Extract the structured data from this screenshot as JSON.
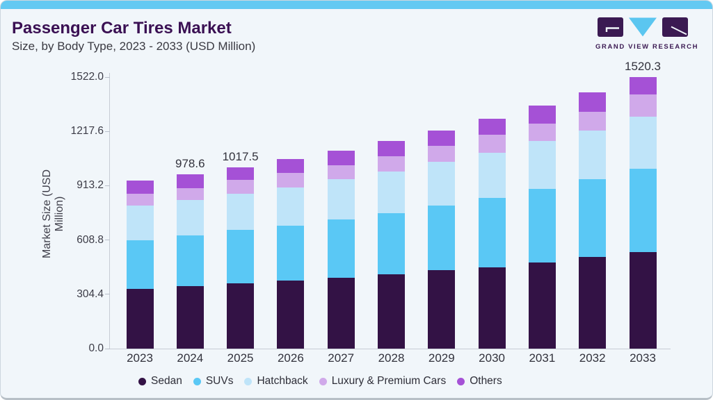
{
  "page": {
    "title": "Passenger Car Tires Market",
    "subtitle": "Size, by Body Type, 2023 - 2033 (USD Million)"
  },
  "logo": {
    "brand": "GRAND VIEW RESEARCH",
    "dark_color": "#3b1a52",
    "blue_color": "#5bc6f0"
  },
  "theme": {
    "card_background": "#f1f6fa",
    "accent_bar": "#63c9f2",
    "title_color": "#3a1053",
    "axis_line_color": "#c7ccd4",
    "text_color": "#32323c"
  },
  "chart_data": {
    "type": "bar",
    "stacked": true,
    "title": "Passenger Car Tires Market Size, by Body Type, 2023 - 2033 (USD Million)",
    "xlabel": "",
    "ylabel": "Market Size (USD Million)",
    "ylim": [
      0,
      1522.0
    ],
    "yticks": [
      0.0,
      304.4,
      608.8,
      913.2,
      1217.6,
      1522.0
    ],
    "grid": false,
    "legend_position": "bottom",
    "categories": [
      "2023",
      "2024",
      "2025",
      "2026",
      "2027",
      "2028",
      "2029",
      "2030",
      "2031",
      "2032",
      "2033"
    ],
    "series": [
      {
        "name": "Sedan",
        "color": "#331245",
        "values": [
          336.6,
          349.3,
          366.4,
          383.3,
          395.4,
          415.5,
          439.6,
          457.3,
          483.8,
          512.0,
          540.2
        ]
      },
      {
        "name": "SUVs",
        "color": "#5ac8f5",
        "values": [
          272.2,
          283.9,
          299.1,
          307.3,
          329.8,
          343.4,
          362.0,
          387.3,
          411.9,
          436.0,
          466.5
        ]
      },
      {
        "name": "Hatchback",
        "color": "#bfe4f9",
        "values": [
          193.4,
          198.0,
          204.2,
          214.4,
          224.0,
          233.3,
          245.3,
          254.6,
          267.9,
          275.9,
          295.2
        ]
      },
      {
        "name": "Luxury & Premium Cars",
        "color": "#d0a9ea",
        "values": [
          65.8,
          69.4,
          76.5,
          80.4,
          77.6,
          86.9,
          90.1,
          98.1,
          98.1,
          103.4,
          121.9
        ]
      },
      {
        "name": "Others",
        "color": "#a551d6",
        "values": [
          73.3,
          78.0,
          71.3,
          76.4,
          83.3,
          84.5,
          86.9,
          90.9,
          98.9,
          108.6,
          96.5
        ]
      }
    ],
    "totals": [
      941.3,
      978.6,
      1017.5,
      1061.8,
      1110.1,
      1163.6,
      1223.9,
      1288.2,
      1360.6,
      1435.9,
      1520.3
    ],
    "bar_labels": [
      "",
      "978.6",
      "1017.5",
      "",
      "",
      "",
      "",
      "",
      "",
      "",
      "1520.3"
    ]
  }
}
